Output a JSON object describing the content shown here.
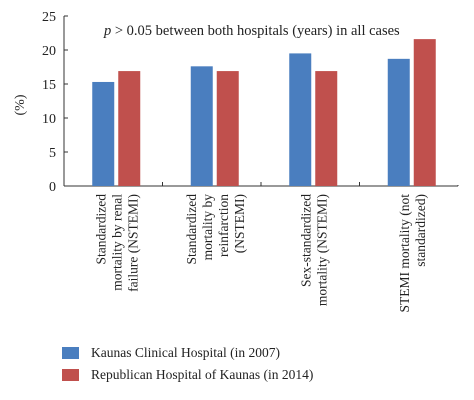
{
  "chart_data": {
    "type": "bar",
    "annotation": {
      "italic": "p",
      "rest": " > 0.05 between both hospitals (years) in all cases"
    },
    "ylabel": "(%)",
    "ylim": [
      0,
      25
    ],
    "yticks": [
      0,
      5,
      10,
      15,
      20,
      25
    ],
    "categories": [
      [
        "Standardized",
        "mortality by renal",
        "failure (NSTEMI)"
      ],
      [
        "Standardized",
        "mortality by",
        "reinfarction",
        "(NSTEMI)"
      ],
      [
        "Sex-standardized",
        "mortality (NSTEMI)"
      ],
      [
        "STEMI mortality (not",
        "standardized)"
      ]
    ],
    "series": [
      {
        "name": "Kaunas Clinical Hospital (in 2007)",
        "color": "#4a7ebf",
        "values": [
          15.3,
          17.6,
          19.5,
          18.7
        ]
      },
      {
        "name": "Republican Hospital of Kaunas (in 2014)",
        "color": "#c0504d",
        "values": [
          16.9,
          16.9,
          16.9,
          21.6
        ]
      }
    ]
  }
}
